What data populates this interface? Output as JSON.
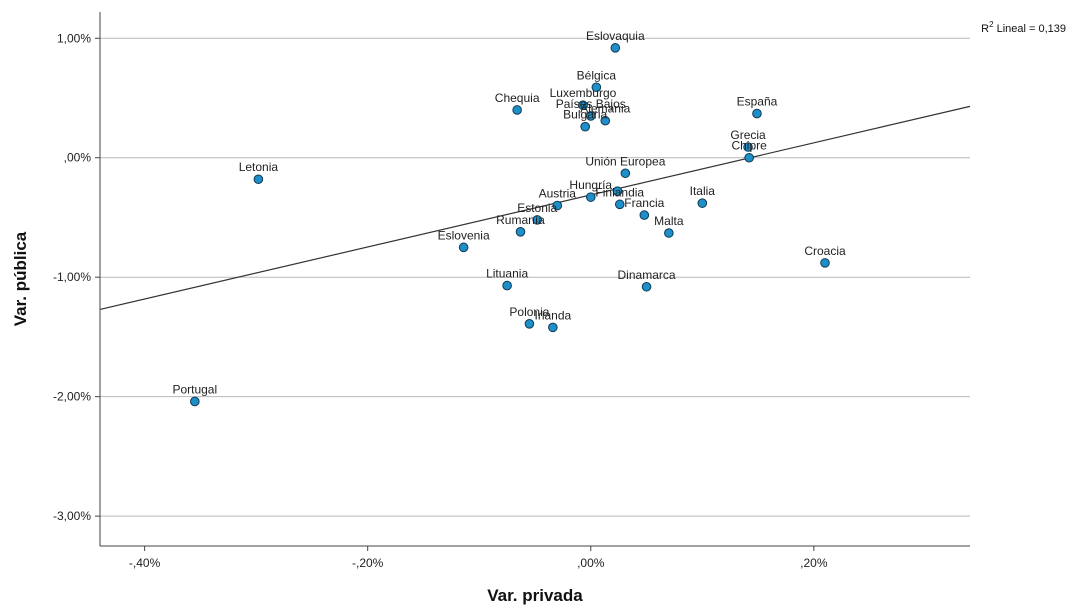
{
  "chart_data": {
    "type": "scatter",
    "xlabel": "Var. privada",
    "ylabel": "Var. pública",
    "xlim": [
      -0.44,
      0.34
    ],
    "ylim": [
      -3.25,
      1.22
    ],
    "x_ticks": [
      -0.4,
      -0.2,
      0.0,
      0.2
    ],
    "x_tick_labels": [
      "-,40%",
      "-,20%",
      ",00%",
      ",20%"
    ],
    "y_ticks": [
      1.0,
      0.0,
      -1.0,
      -2.0,
      -3.0
    ],
    "y_tick_labels": [
      "1,00%",
      ",00%",
      "-1,00%",
      "-2,00%",
      "-3,00%"
    ],
    "grid": "horizontal",
    "point_color": "#1e8fc8",
    "fit_line": {
      "type": "linear",
      "label_prefix": "R",
      "label_sup": "2",
      "label_suffix": " Lineal = 0,139",
      "x": [
        -0.44,
        0.34
      ],
      "y": [
        -1.27,
        0.43
      ]
    },
    "points": [
      {
        "label": "Eslovaquia",
        "x": 0.022,
        "y": 0.92
      },
      {
        "label": "Bélgica",
        "x": 0.005,
        "y": 0.59
      },
      {
        "label": "Chequia",
        "x": -0.066,
        "y": 0.4
      },
      {
        "label": "Luxemburgo",
        "x": -0.007,
        "y": 0.44
      },
      {
        "label": "Países Bajos",
        "x": 0.0,
        "y": 0.35
      },
      {
        "label": "Alemania",
        "x": 0.013,
        "y": 0.31
      },
      {
        "label": "Bulgaria",
        "x": -0.005,
        "y": 0.26
      },
      {
        "label": "España",
        "x": 0.149,
        "y": 0.37
      },
      {
        "label": "Grecia",
        "x": 0.141,
        "y": 0.09
      },
      {
        "label": "Chipre",
        "x": 0.142,
        "y": 0.0
      },
      {
        "label": "Letonia",
        "x": -0.298,
        "y": -0.18
      },
      {
        "label": "Unión Europea",
        "x": 0.031,
        "y": -0.13
      },
      {
        "label": "Austria",
        "x": -0.03,
        "y": -0.4
      },
      {
        "label": "Hungría",
        "x": 0.0,
        "y": -0.33
      },
      {
        "label": "",
        "x": 0.024,
        "y": -0.28
      },
      {
        "label": "Italia",
        "x": 0.1,
        "y": -0.38
      },
      {
        "label": "Estonia",
        "x": -0.048,
        "y": -0.52
      },
      {
        "label": "Finlandia",
        "x": 0.026,
        "y": -0.39
      },
      {
        "label": "Francia",
        "x": 0.048,
        "y": -0.48
      },
      {
        "label": "Malta",
        "x": 0.07,
        "y": -0.63
      },
      {
        "label": "Eslovenia",
        "x": -0.114,
        "y": -0.75
      },
      {
        "label": "Rumanía",
        "x": -0.063,
        "y": -0.62
      },
      {
        "label": "Croacia",
        "x": 0.21,
        "y": -0.88
      },
      {
        "label": "Lituania",
        "x": -0.075,
        "y": -1.07
      },
      {
        "label": "Dinamarca",
        "x": 0.05,
        "y": -1.08
      },
      {
        "label": "Polonia",
        "x": -0.055,
        "y": -1.39
      },
      {
        "label": "Irlanda",
        "x": -0.034,
        "y": -1.42
      },
      {
        "label": "Portugal",
        "x": -0.355,
        "y": -2.04
      }
    ]
  }
}
